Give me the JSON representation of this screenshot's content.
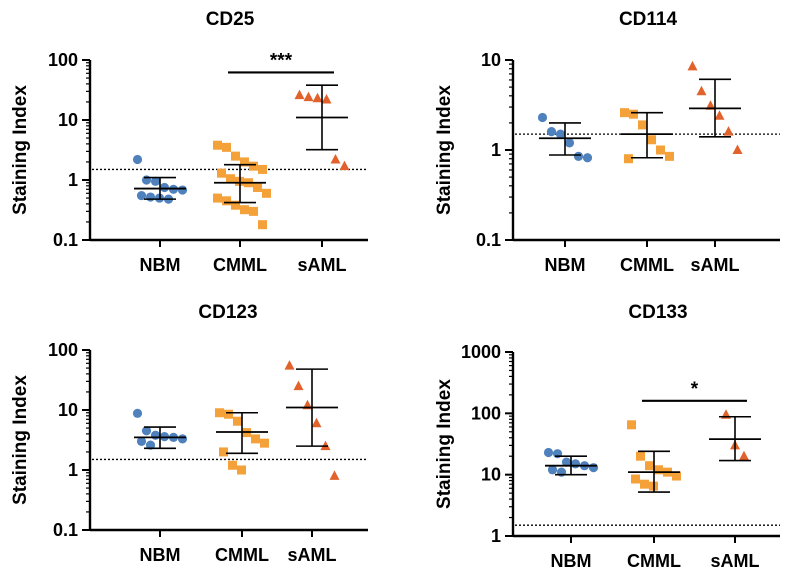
{
  "colors": {
    "NBM": "#4f81bd",
    "CMML": "#f4a13a",
    "sAML": "#e2622b",
    "axis": "#000000"
  },
  "chart_data": [
    {
      "type": "scatter",
      "title": "CD25",
      "ylabel": "Staining Index",
      "yscale": "log",
      "ylim": [
        0.1,
        100
      ],
      "yticks": [
        "0.1",
        "1",
        "10",
        "100"
      ],
      "threshold": 1.5,
      "categories": [
        "NBM",
        "CMML",
        "sAML"
      ],
      "series": [
        {
          "name": "NBM",
          "marker": "circle",
          "values": [
            2.2,
            1.0,
            0.95,
            0.75,
            0.7,
            0.68,
            0.55,
            0.52,
            0.5,
            0.48
          ],
          "mean": 0.72,
          "sd_low": 0.48,
          "sd_high": 1.1
        },
        {
          "name": "CMML",
          "marker": "square",
          "values": [
            3.8,
            3.5,
            2.5,
            2.0,
            1.7,
            1.5,
            1.3,
            1.05,
            0.95,
            0.9,
            0.75,
            0.6,
            0.5,
            0.45,
            0.38,
            0.32,
            0.3,
            0.18
          ],
          "mean": 0.9,
          "sd_low": 0.42,
          "sd_high": 1.8
        },
        {
          "name": "sAML",
          "marker": "triangle",
          "values": [
            26,
            24,
            23,
            22,
            2.2,
            1.7
          ],
          "mean": 11,
          "sd_low": 3.2,
          "sd_high": 38
        }
      ],
      "significance": {
        "from": "CMML",
        "to": "sAML",
        "label": "***",
        "y": 62
      }
    },
    {
      "type": "scatter",
      "title": "CD114",
      "ylabel": "Staining Index",
      "yscale": "log",
      "ylim": [
        0.1,
        10
      ],
      "yticks": [
        "0.1",
        "1",
        "10"
      ],
      "threshold": 1.5,
      "categories": [
        "NBM",
        "CMML",
        "sAML"
      ],
      "series": [
        {
          "name": "NBM",
          "marker": "circle",
          "values": [
            2.3,
            1.6,
            1.5,
            1.2,
            0.85,
            0.82
          ],
          "mean": 1.35,
          "sd_low": 0.88,
          "sd_high": 2.0
        },
        {
          "name": "CMML",
          "marker": "square",
          "values": [
            2.6,
            2.5,
            1.9,
            1.3,
            1.0,
            0.85,
            0.8
          ],
          "mean": 1.5,
          "sd_low": 0.82,
          "sd_high": 2.6
        },
        {
          "name": "sAML",
          "marker": "triangle",
          "values": [
            8.5,
            4.5,
            3.1,
            2.4,
            1.6,
            1.0
          ],
          "mean": 2.9,
          "sd_low": 1.4,
          "sd_high": 6.1
        }
      ]
    },
    {
      "type": "scatter",
      "title": "CD123",
      "ylabel": "Staining Index",
      "yscale": "log",
      "ylim": [
        0.1,
        100
      ],
      "yticks": [
        "0.1",
        "1",
        "10",
        "100"
      ],
      "threshold": 1.5,
      "categories": [
        "NBM",
        "CMML",
        "sAML"
      ],
      "series": [
        {
          "name": "NBM",
          "marker": "circle",
          "values": [
            8.8,
            4.5,
            3.8,
            3.6,
            3.5,
            3.3,
            3.0,
            2.6
          ],
          "mean": 3.5,
          "sd_low": 2.3,
          "sd_high": 5.2
        },
        {
          "name": "CMML",
          "marker": "square",
          "values": [
            9.0,
            8.5,
            6.5,
            4.2,
            3.3,
            2.8,
            2.0,
            1.2,
            1.0
          ],
          "mean": 4.3,
          "sd_low": 1.9,
          "sd_high": 9.0
        },
        {
          "name": "sAML",
          "marker": "triangle",
          "values": [
            55,
            25,
            12,
            6.0,
            2.5,
            0.8
          ],
          "mean": 11,
          "sd_low": 2.5,
          "sd_high": 48
        }
      ]
    },
    {
      "type": "scatter",
      "title": "CD133",
      "ylabel": "Staining Index",
      "yscale": "log",
      "ylim": [
        1,
        1000
      ],
      "yticks": [
        "1",
        "10",
        "100",
        "1000"
      ],
      "threshold": 1.5,
      "categories": [
        "NBM",
        "CMML",
        "sAML"
      ],
      "series": [
        {
          "name": "NBM",
          "marker": "circle",
          "values": [
            23,
            22,
            16,
            15,
            14,
            13,
            12,
            11
          ],
          "mean": 14,
          "sd_low": 10,
          "sd_high": 20
        },
        {
          "name": "CMML",
          "marker": "square",
          "values": [
            65,
            20,
            14,
            12,
            11,
            9.5,
            8.5,
            7,
            6.5
          ],
          "mean": 11,
          "sd_low": 5.2,
          "sd_high": 24
        },
        {
          "name": "sAML",
          "marker": "triangle",
          "values": [
            95,
            30,
            20
          ],
          "mean": 38,
          "sd_low": 17,
          "sd_high": 88
        }
      ],
      "significance": {
        "from": "CMML",
        "to": "sAML",
        "label": "*",
        "y": 160
      }
    }
  ]
}
